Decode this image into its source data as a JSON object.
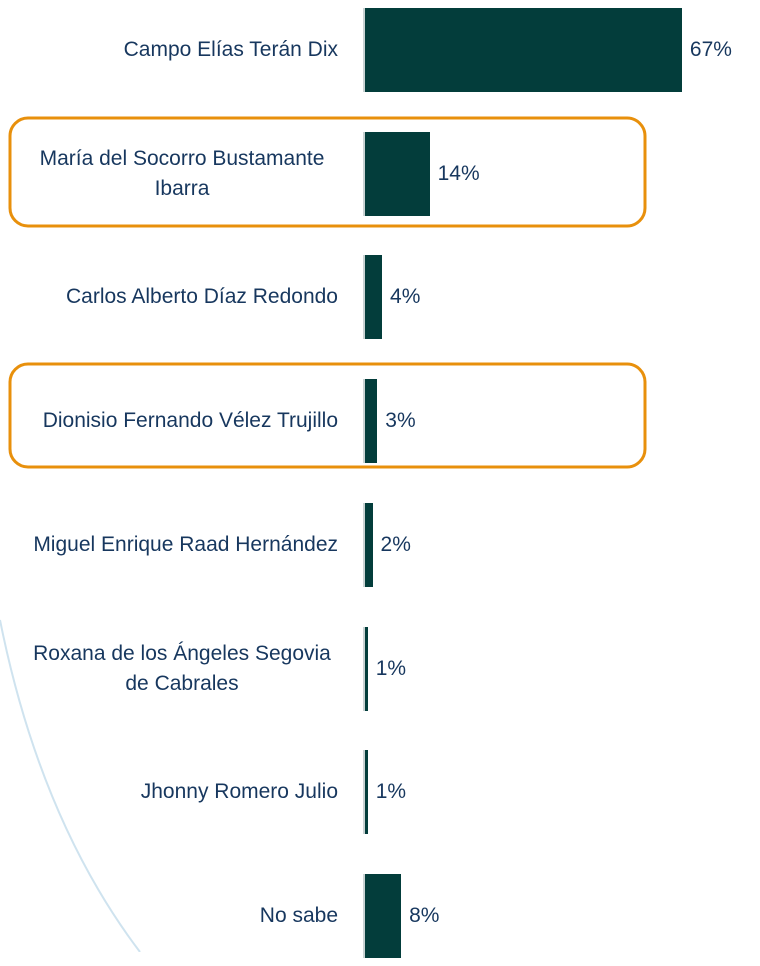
{
  "chart_data": {
    "type": "bar",
    "orientation": "horizontal",
    "categories": [
      "Campo Elías Terán Dix",
      "María del Socorro Bustamante Ibarra",
      "Carlos Alberto Díaz Redondo",
      "Dionisio Fernando Vélez Trujillo",
      "Miguel Enrique Raad Hernández",
      "Roxana de los Ángeles Segovia de Cabrales",
      "Jhonny Romero Julio",
      "No sabe"
    ],
    "values": [
      67,
      14,
      4,
      3,
      2,
      1,
      1,
      8
    ],
    "value_labels": [
      "67%",
      "14%",
      "4%",
      "3%",
      "2%",
      "1%",
      "1%",
      "8%"
    ],
    "color": "#033d3b"
  }
}
